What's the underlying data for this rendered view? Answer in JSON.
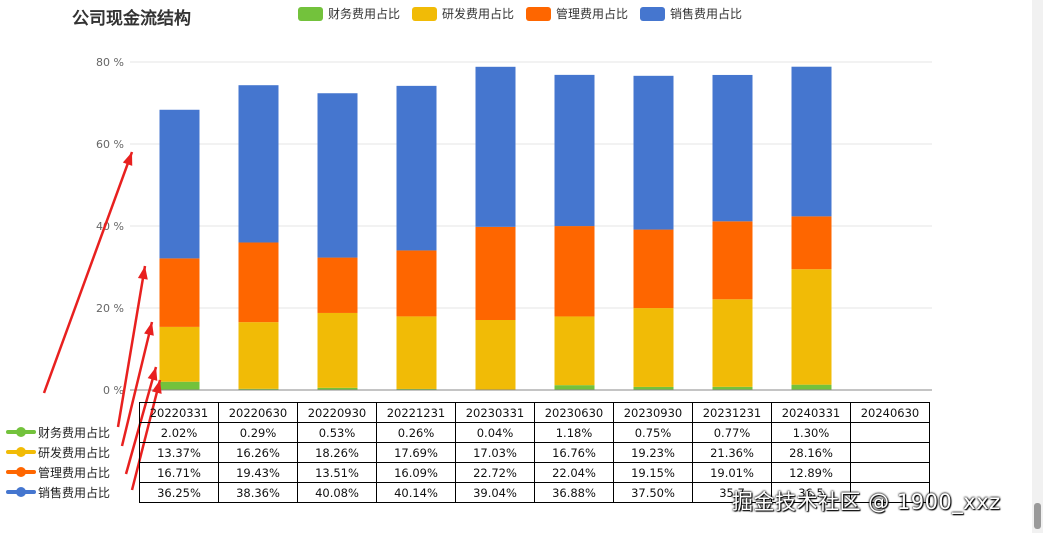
{
  "chart_data": {
    "type": "bar",
    "stacked": true,
    "title": "公司现金流结构",
    "categories": [
      "20220331",
      "20220630",
      "20220930",
      "20221231",
      "20230331",
      "20230630",
      "20230930",
      "20231231",
      "20240331",
      "20240630"
    ],
    "series": [
      {
        "name": "财务费用占比",
        "color": "#73c23c",
        "values": [
          2.02,
          0.29,
          0.53,
          0.26,
          0.04,
          1.18,
          0.75,
          0.77,
          1.3,
          null
        ],
        "labels": [
          "2.02%",
          "0.29%",
          "0.53%",
          "0.26%",
          "0.04%",
          "1.18%",
          "0.75%",
          "0.77%",
          "1.30%",
          ""
        ]
      },
      {
        "name": "研发费用占比",
        "color": "#f1bb06",
        "values": [
          13.37,
          16.26,
          18.26,
          17.69,
          17.03,
          16.76,
          19.23,
          21.36,
          28.16,
          null
        ],
        "labels": [
          "13.37%",
          "16.26%",
          "18.26%",
          "17.69%",
          "17.03%",
          "16.76%",
          "19.23%",
          "21.36%",
          "28.16%",
          ""
        ]
      },
      {
        "name": "管理费用占比",
        "color": "#fe6600",
        "values": [
          16.71,
          19.43,
          13.51,
          16.09,
          22.72,
          22.04,
          19.15,
          19.01,
          12.89,
          null
        ],
        "labels": [
          "16.71%",
          "19.43%",
          "13.51%",
          "16.09%",
          "22.72%",
          "22.04%",
          "19.15%",
          "19.01%",
          "12.89%",
          ""
        ]
      },
      {
        "name": "销售费用占比",
        "color": "#4576cf",
        "values": [
          36.25,
          38.36,
          40.08,
          40.14,
          39.04,
          36.88,
          37.5,
          35.7,
          36.5,
          null
        ],
        "labels": [
          "36.25%",
          "38.36%",
          "40.08%",
          "40.14%",
          "39.04%",
          "36.88%",
          "37.50%",
          "35.7",
          "36.5",
          ""
        ]
      }
    ],
    "yticks": [
      0,
      20,
      40,
      60,
      80
    ],
    "ytick_labels": [
      "0 %",
      "20 %",
      "40 %",
      "60 %",
      "80 %"
    ],
    "ylim": [
      0,
      80
    ],
    "grid": true,
    "legend": "top-center",
    "table_below": true
  },
  "watermark": "掘金技术社区 @ 1900_xxz",
  "annotation_color": "#e8201f"
}
